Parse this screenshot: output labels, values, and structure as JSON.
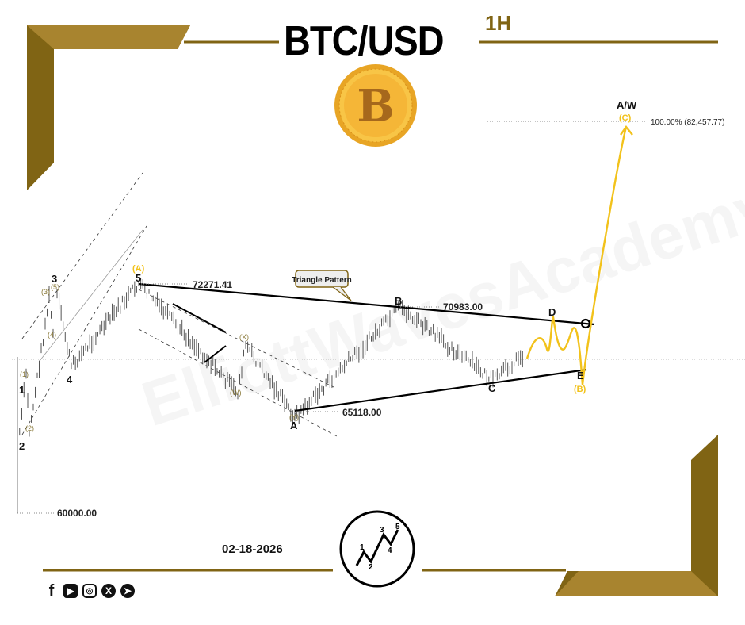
{
  "header": {
    "title": "BTC/USD",
    "timeframe": "1H"
  },
  "footer": {
    "date": "02-18-2026",
    "logo_wave_labels": [
      "1",
      "2",
      "3",
      "4",
      "5"
    ],
    "social_icons": [
      "facebook-icon",
      "youtube-icon",
      "instagram-icon",
      "x-icon",
      "telegram-icon"
    ]
  },
  "colors": {
    "gold": "#806414",
    "gold_light": "#a8842f",
    "projection": "#f2c21b",
    "bars": "#555555"
  },
  "chart_data": {
    "type": "line",
    "title": "BTC/USD",
    "timeframe": "1H",
    "price_levels": [
      {
        "label": "72271.41",
        "price": 72271.41
      },
      {
        "label": "70983.00",
        "price": 70983.0
      },
      {
        "label": "65118.00",
        "price": 65118.0
      },
      {
        "label": "60000.00",
        "price": 60000.0
      }
    ],
    "target": {
      "label": "100.00% (82,457.77)",
      "price": 82457.77
    },
    "pivots": [
      {
        "label": "",
        "price": 60000
      },
      {
        "label": "2",
        "price": 63050
      },
      {
        "label": "1",
        "price": 67500
      },
      {
        "label": "(2)",
        "price": 64320
      },
      {
        "label": "(3)",
        "price": 71520
      },
      {
        "label": "(4)",
        "price": 69620
      },
      {
        "label": "3",
        "price": 71650
      },
      {
        "label": "4",
        "price": 67840
      },
      {
        "label": "5",
        "price": 72271.41
      },
      {
        "label": "(W)",
        "price": 66440
      },
      {
        "label": "(X)",
        "price": 68980
      },
      {
        "label": "A",
        "price": 65118
      },
      {
        "label": "B",
        "price": 70983
      },
      {
        "label": "C",
        "price": 67080
      },
      {
        "label": "",
        "price": 68560
      }
    ],
    "projection": [
      {
        "label": "D",
        "price": 70470
      },
      {
        "label": "E",
        "price": 66860
      },
      {
        "label": "A/W",
        "price": 82457.77
      }
    ],
    "wave_labels": {
      "impulse_top": "(A)",
      "triangle_end": "(B)",
      "target": "(C)",
      "sub_1": "(1)",
      "sub_5": "(5)",
      "sub_y": "(Y)"
    },
    "annotations": {
      "triangle_callout": "Triangle Pattern"
    }
  }
}
